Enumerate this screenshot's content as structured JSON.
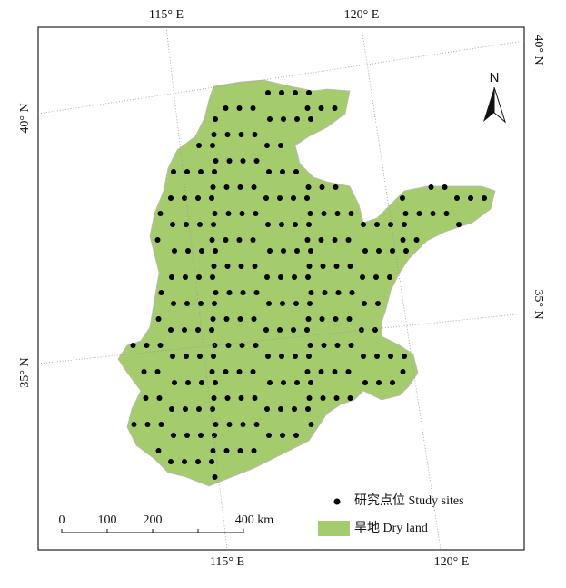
{
  "graticule": {
    "top": [
      "115° E",
      "120° E"
    ],
    "bottom": [
      "115° E",
      "120° E"
    ],
    "left": [
      "40° N",
      "35° N"
    ],
    "right": [
      "40° N",
      "35° N"
    ]
  },
  "north_arrow": "N",
  "scale_bar": [
    "0",
    "100",
    "200",
    "400 km"
  ],
  "legend": [
    "研究点位 Study sites",
    "旱地 Dry land"
  ]
}
